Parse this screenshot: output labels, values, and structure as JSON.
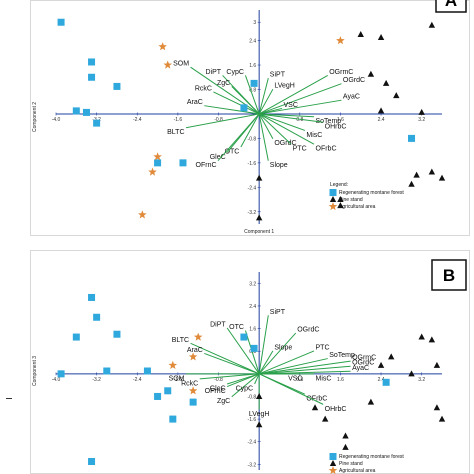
{
  "chart_data": [
    {
      "panel": "A",
      "type": "scatter",
      "xlabel": "Component 1",
      "ylabel": "Component 2",
      "xlim": [
        -4.0,
        3.6
      ],
      "ylim": [
        -3.6,
        3.4
      ],
      "x_ticks": [
        "-4.0",
        "-3.2",
        "-2.4",
        "-1.6",
        "-0.8",
        "0.8",
        "1.6",
        "2.4",
        "3.2"
      ],
      "y_ticks": [
        "3",
        "2.4",
        "1.6",
        "0.8",
        "-0.8",
        "-1.6",
        "-2.4",
        "-3.2"
      ],
      "legend": {
        "title": "Legend:",
        "entries": [
          "Regenerating montane forest",
          "Pine stand",
          "Agricultural area"
        ],
        "position": "bottom-right"
      },
      "series": [
        {
          "name": "Regenerating montane forest",
          "marker": "square",
          "color": "#2ea8dd",
          "points": [
            [
              -3.9,
              3.0
            ],
            [
              -3.3,
              1.7
            ],
            [
              -3.3,
              1.2
            ],
            [
              -2.8,
              0.9
            ],
            [
              -3.6,
              0.1
            ],
            [
              -3.4,
              0.05
            ],
            [
              -3.2,
              -0.3
            ],
            [
              -2.0,
              -1.6
            ],
            [
              -1.5,
              -1.6
            ],
            [
              -0.3,
              0.2
            ],
            [
              -0.1,
              1.0
            ],
            [
              3.0,
              -0.8
            ]
          ]
        },
        {
          "name": "Pine stand",
          "marker": "triangle",
          "color": "#111111",
          "points": [
            [
              2.0,
              2.6
            ],
            [
              2.4,
              2.5
            ],
            [
              3.4,
              2.9
            ],
            [
              2.2,
              1.3
            ],
            [
              2.5,
              1.0
            ],
            [
              2.7,
              0.6
            ],
            [
              2.4,
              0.1
            ],
            [
              3.2,
              0.05
            ],
            [
              3.1,
              -2.0
            ],
            [
              3.4,
              -1.9
            ],
            [
              3.0,
              -2.3
            ],
            [
              3.6,
              -2.1
            ],
            [
              1.6,
              -2.8
            ],
            [
              1.6,
              -3.0
            ],
            [
              0.0,
              -3.4
            ],
            [
              0.0,
              -2.1
            ]
          ]
        },
        {
          "name": "Agricultural area",
          "marker": "star",
          "color": "#e08a3a",
          "points": [
            [
              -1.9,
              2.2
            ],
            [
              -1.8,
              1.6
            ],
            [
              -2.0,
              -1.4
            ],
            [
              -2.1,
              -1.9
            ],
            [
              -2.3,
              -3.3
            ],
            [
              1.6,
              2.4
            ]
          ]
        }
      ],
      "vectors": [
        {
          "label": "SOM",
          "x": -1.5,
          "y": 1.7
        },
        {
          "label": "DiPT",
          "x": -0.8,
          "y": 1.4
        },
        {
          "label": "CypC",
          "x": -0.3,
          "y": 1.4
        },
        {
          "label": "SiPT",
          "x": 0.2,
          "y": 1.3
        },
        {
          "label": "LVegH",
          "x": 0.3,
          "y": 0.9
        },
        {
          "label": "OGrmC",
          "x": 1.5,
          "y": 1.4
        },
        {
          "label": "OGrdC",
          "x": 1.8,
          "y": 1.1
        },
        {
          "label": "ZgC",
          "x": -0.6,
          "y": 1.0
        },
        {
          "label": "RckC",
          "x": -1.0,
          "y": 0.8
        },
        {
          "label": "AraC",
          "x": -1.2,
          "y": 0.3
        },
        {
          "label": "VSC",
          "x": 0.5,
          "y": 0.2
        },
        {
          "label": "AyaC",
          "x": 1.8,
          "y": 0.5
        },
        {
          "label": "SoTemp",
          "x": 1.2,
          "y": -0.1
        },
        {
          "label": "OHrbC",
          "x": 1.4,
          "y": -0.3
        },
        {
          "label": "MisC",
          "x": 1.0,
          "y": -0.6
        },
        {
          "label": "OGrdC",
          "x": 0.3,
          "y": -0.9
        },
        {
          "label": "PTC",
          "x": 0.7,
          "y": -1.1
        },
        {
          "label": "OFrbC",
          "x": 1.2,
          "y": -1.1
        },
        {
          "label": "BLTC",
          "x": -1.6,
          "y": -0.5
        },
        {
          "label": "OTC",
          "x": -0.4,
          "y": -1.2
        },
        {
          "label": "GleC",
          "x": -0.7,
          "y": -1.4
        },
        {
          "label": "OFrnC",
          "x": -0.9,
          "y": -1.7
        },
        {
          "label": "Slope",
          "x": 0.2,
          "y": -1.7
        }
      ]
    },
    {
      "panel": "B",
      "type": "scatter",
      "ylabel": "Component 3",
      "xlim": [
        -4.0,
        3.6
      ],
      "ylim": [
        -3.4,
        3.6
      ],
      "x_ticks": [
        "-4.0",
        "-3.2",
        "-2.4",
        "-1.6",
        "-0.8",
        "0.8",
        "1.6",
        "2.4",
        "3.2"
      ],
      "y_ticks": [
        "3.2",
        "2.4",
        "1.6",
        "0.8",
        "-0.8",
        "-1.6",
        "-2.4",
        "-3.2"
      ],
      "legend": {
        "entries": [
          "Regenerating montane forest",
          "Pine stand",
          "Agricultural area"
        ],
        "position": "bottom-right"
      },
      "series": [
        {
          "name": "Regenerating montane forest",
          "marker": "square",
          "color": "#2ea8dd",
          "points": [
            [
              -3.3,
              2.7
            ],
            [
              -3.2,
              2.0
            ],
            [
              -3.6,
              1.3
            ],
            [
              -2.8,
              1.4
            ],
            [
              -3.0,
              0.1
            ],
            [
              -3.9,
              0.0
            ],
            [
              -2.2,
              0.1
            ],
            [
              -1.8,
              -0.6
            ],
            [
              -2.0,
              -0.8
            ],
            [
              -1.3,
              -1.0
            ],
            [
              -1.7,
              -1.6
            ],
            [
              -0.3,
              1.3
            ],
            [
              -0.1,
              0.9
            ],
            [
              -3.3,
              -3.1
            ],
            [
              2.5,
              -0.3
            ]
          ]
        },
        {
          "name": "Pine stand",
          "marker": "triangle",
          "color": "#111111",
          "points": [
            [
              3.2,
              1.3
            ],
            [
              3.4,
              1.2
            ],
            [
              3.5,
              0.3
            ],
            [
              3.0,
              0.0
            ],
            [
              2.6,
              0.6
            ],
            [
              2.4,
              0.3
            ],
            [
              3.5,
              -1.2
            ],
            [
              3.6,
              -1.6
            ],
            [
              0.0,
              -0.8
            ],
            [
              0.0,
              -1.8
            ],
            [
              1.1,
              -1.2
            ],
            [
              1.3,
              -1.6
            ],
            [
              1.7,
              -2.2
            ],
            [
              1.7,
              -2.6
            ],
            [
              2.2,
              -1.0
            ]
          ]
        },
        {
          "name": "Agricultural area",
          "marker": "star",
          "color": "#e08a3a",
          "points": [
            [
              -1.2,
              1.3
            ],
            [
              -1.3,
              0.6
            ],
            [
              -1.7,
              0.3
            ],
            [
              -1.3,
              -0.6
            ]
          ]
        }
      ],
      "vectors": [
        {
          "label": "DiPT",
          "x": -0.7,
          "y": 1.8
        },
        {
          "label": "OTC",
          "x": -0.3,
          "y": 1.7
        },
        {
          "label": "SiPT",
          "x": 0.2,
          "y": 2.3
        },
        {
          "label": "OGrdC",
          "x": 0.8,
          "y": 1.6
        },
        {
          "label": "Slope",
          "x": 0.3,
          "y": 0.9
        },
        {
          "label": "PTC",
          "x": 1.2,
          "y": 0.9
        },
        {
          "label": "SoTemp",
          "x": 1.5,
          "y": 0.6
        },
        {
          "label": "OGrmC",
          "x": 2.0,
          "y": 0.5
        },
        {
          "label": "OGrdC",
          "x": 2.0,
          "y": 0.3
        },
        {
          "label": "AyaC",
          "x": 2.0,
          "y": 0.1
        },
        {
          "label": "MisC",
          "x": 1.2,
          "y": 0.0
        },
        {
          "label": "VSC",
          "x": 0.6,
          "y": 0.0
        },
        {
          "label": "BLTC",
          "x": -1.5,
          "y": 1.2
        },
        {
          "label": "AraC",
          "x": -1.2,
          "y": 0.8
        },
        {
          "label": "SOM",
          "x": -1.6,
          "y": 0.0
        },
        {
          "label": "RckC",
          "x": -1.3,
          "y": -0.2
        },
        {
          "label": "GleC",
          "x": -0.7,
          "y": -0.4
        },
        {
          "label": "OFrnC",
          "x": -0.7,
          "y": -0.5
        },
        {
          "label": "ZgC",
          "x": -0.6,
          "y": -0.9
        },
        {
          "label": "CypC",
          "x": -0.1,
          "y": -0.4
        },
        {
          "label": "LVegH",
          "x": 0.0,
          "y": -1.4
        },
        {
          "label": "OFrbC",
          "x": 1.0,
          "y": -0.8
        },
        {
          "label": "OHrbC",
          "x": 1.4,
          "y": -1.2
        }
      ]
    }
  ]
}
